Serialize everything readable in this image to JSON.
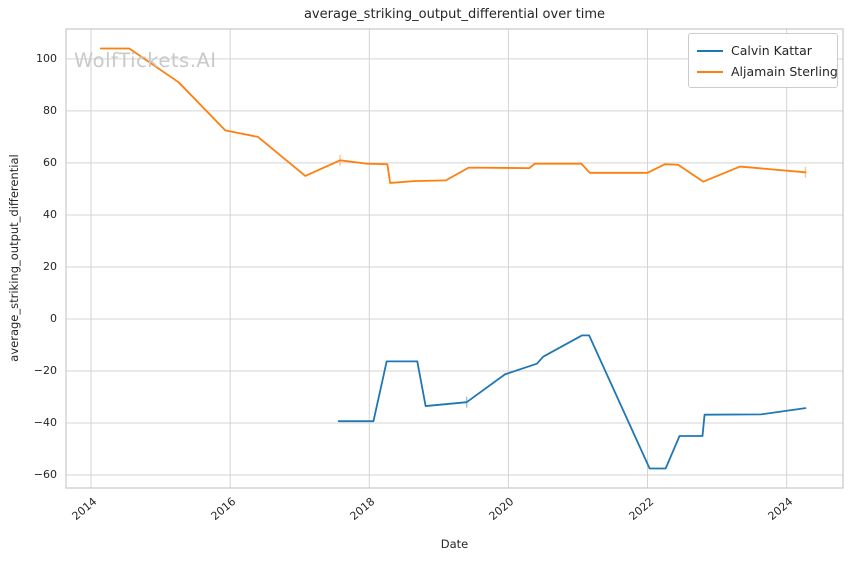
{
  "watermark": "WolfTickets.AI",
  "chart_data": {
    "type": "line",
    "title": "average_striking_output_differential over time",
    "xlabel": "Date",
    "ylabel": "average_striking_output_differential",
    "x_ticks": [
      2014,
      2016,
      2018,
      2020,
      2022,
      2024
    ],
    "x_tick_labels": [
      "2014",
      "2016",
      "2018",
      "2020",
      "2022",
      "2024"
    ],
    "y_ticks": [
      100,
      80,
      60,
      40,
      20,
      0,
      -20,
      -40,
      -60
    ],
    "y_tick_labels": [
      "100",
      "80",
      "60",
      "40",
      "20",
      "0",
      "−20",
      "−40",
      "−60"
    ],
    "x_range": [
      2013.64,
      2024.81
    ],
    "y_range": [
      -65,
      111.5
    ],
    "grid": true,
    "grid_color": "#d4d4d4",
    "spine_color": "#c7c7c7",
    "legend_position": "upper right",
    "series": [
      {
        "name": "Calvin Kattar",
        "color": "#1f77b4",
        "x": [
          2017.56,
          2018.06,
          2018.25,
          2018.69,
          2018.81,
          2019.4,
          2019.95,
          2020.41,
          2020.5,
          2021.06,
          2021.16,
          2022.03,
          2022.26,
          2022.46,
          2022.79,
          2022.82,
          2023.63,
          2024.27
        ],
        "y": [
          -39.3,
          -39.3,
          -16.3,
          -16.3,
          -33.5,
          -32.0,
          -21.3,
          -17.2,
          -14.5,
          -6.3,
          -6.3,
          -57.5,
          -57.5,
          -45.0,
          -45.0,
          -36.8,
          -36.7,
          -34.3
        ],
        "marker_indices": [
          5
        ]
      },
      {
        "name": "Aljamain Sterling",
        "color": "#ff7f0e",
        "x": [
          2014.14,
          2014.55,
          2015.26,
          2015.93,
          2016.4,
          2017.08,
          2017.58,
          2017.97,
          2018.26,
          2018.3,
          2018.64,
          2019.1,
          2019.43,
          2020.3,
          2020.38,
          2021.05,
          2021.17,
          2022.0,
          2022.25,
          2022.44,
          2022.8,
          2023.33,
          2024.27
        ],
        "y": [
          104,
          104,
          91,
          72.5,
          70,
          55,
          61,
          59.7,
          59.5,
          52.3,
          53,
          53.3,
          58.2,
          58,
          59.7,
          59.7,
          56.2,
          56.2,
          59.5,
          59.3,
          52.8,
          58.6,
          56.4
        ],
        "marker_indices": [
          6,
          22
        ]
      }
    ]
  }
}
